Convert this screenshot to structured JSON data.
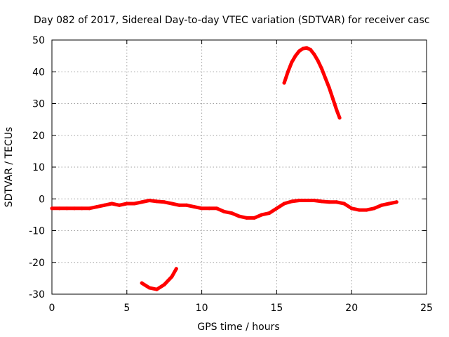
{
  "chart_data": {
    "type": "line",
    "title": "Day 082 of 2017, Sidereal Day-to-day VTEC variation (SDTVAR) for receiver casc",
    "xlabel": "GPS time / hours",
    "ylabel": "SDTVAR / TECUs",
    "xlim": [
      0,
      25
    ],
    "ylim": [
      -30,
      50
    ],
    "x_ticks": [
      0,
      5,
      10,
      15,
      20,
      25
    ],
    "y_ticks": [
      -30,
      -20,
      -10,
      0,
      10,
      20,
      30,
      40,
      50
    ],
    "x_tick_labels": [
      "0",
      "5",
      "10",
      "15",
      "20",
      "25"
    ],
    "y_tick_labels": [
      "-30",
      "-20",
      "-10",
      "0",
      "10",
      "20",
      "30",
      "40",
      "50"
    ],
    "grid": true,
    "legend": "none",
    "color": "#ff0000",
    "series": [
      {
        "name": "main-trace",
        "x": [
          0,
          0.5,
          1,
          1.5,
          2,
          2.5,
          3,
          3.5,
          4,
          4.5,
          5,
          5.5,
          6,
          6.5,
          7,
          7.5,
          8,
          8.5,
          9,
          9.5,
          10,
          10.5,
          11,
          11.5,
          12,
          12.5,
          13,
          13.5,
          14,
          14.5,
          15,
          15.5,
          16,
          16.5,
          17,
          17.5,
          18,
          18.5,
          19,
          19.5,
          20,
          20.5,
          21,
          21.5,
          22,
          22.5,
          23
        ],
        "y": [
          -3,
          -3,
          -3,
          -3,
          -3,
          -3,
          -2.5,
          -2,
          -1.5,
          -2,
          -1.5,
          -1.5,
          -1,
          -0.5,
          -0.8,
          -1,
          -1.5,
          -2,
          -2,
          -2.5,
          -3,
          -3,
          -3,
          -4,
          -4.5,
          -5.5,
          -6,
          -6,
          -5,
          -4.5,
          -3,
          -1.5,
          -0.8,
          -0.5,
          -0.5,
          -0.5,
          -0.8,
          -1,
          -1,
          -1.5,
          -3,
          -3.5,
          -3.5,
          -3,
          -2,
          -1.5,
          -1
        ]
      },
      {
        "name": "lower-arc",
        "x": [
          6,
          6.5,
          7,
          7.5,
          8,
          8.3
        ],
        "y": [
          -26.5,
          -28,
          -28.5,
          -27,
          -24.5,
          -22
        ]
      },
      {
        "name": "upper-arc",
        "x": [
          15.5,
          15.75,
          16,
          16.25,
          16.5,
          16.75,
          17,
          17.25,
          17.5,
          17.75,
          18,
          18.25,
          18.5,
          18.75,
          19,
          19.2
        ],
        "y": [
          36.5,
          40,
          43,
          45,
          46.5,
          47.3,
          47.5,
          47,
          45.5,
          43.5,
          41,
          38,
          35,
          31.5,
          28,
          25.5
        ]
      }
    ]
  }
}
